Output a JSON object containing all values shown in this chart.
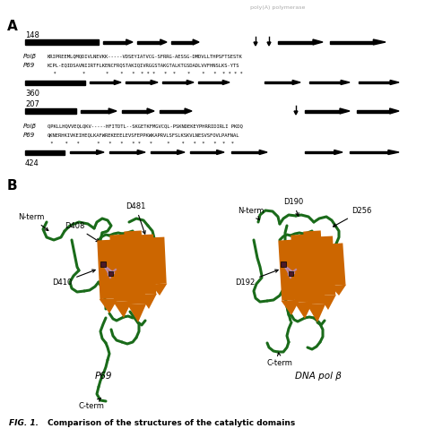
{
  "background_color": "#f5f5f0",
  "panel_A_label": "A",
  "panel_B_label": "B",
  "seq_numbers": [
    "148",
    "360",
    "207",
    "424"
  ],
  "polb_label": "Polβ",
  "p69_label": "P69",
  "polb_seq1": "KRIPREEMLQMQDIVLNEVKK-----VDSEYIATVCG-SFRRG-AESSG-DMDVLLTHPSFTSESTK",
  "p69_seq1": "KCPL-EQIDSAVNIIRTFLKENCFRQSTAKIQIVRGGSTAKGTALKTGSDADLVVFHNSLKS-YTS",
  "polb_seq2": "QPKLLHQVVEQLQKV-----HFITDTL--SKGETKFMGVCQL-PSKNDEKEYPHRRIDIRLI PKDQ",
  "p69_seq2": "QKNERHKIVKEIHEQLKAFWREKEEELEVSFEPPKWKAPRVLSFSLKSKVLNESVSFOVLPAFNAL",
  "stars_row1": "  *         *       *    *   *  * * *   *  *    *    *   *  * * * *",
  "stars_row2": " *    *   *      *   *   *   * *   *     *    *   *  *   *  *  *",
  "orange_color": "#CC6600",
  "green_color": "#1a6b1a",
  "pink_color": "#bb88aa",
  "dark_color": "#330000",
  "caption_prefix": "FIG. 1.",
  "caption_text": "Comparison of the structures of the catalytic domains"
}
